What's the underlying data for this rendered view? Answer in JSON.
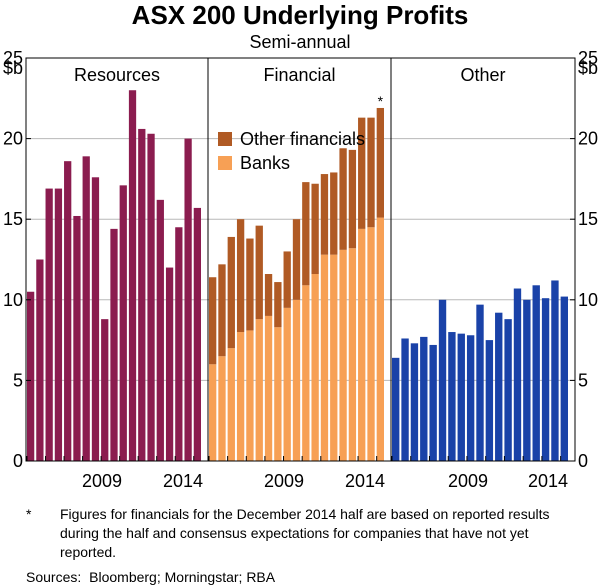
{
  "title": "ASX 200 Underlying Profits",
  "subtitle": "Semi-annual",
  "chart_data": {
    "type": "bar",
    "ylabel": "$b",
    "ylim": [
      0,
      25
    ],
    "yticks": [
      0,
      5,
      10,
      15,
      20,
      25
    ],
    "xtick_labels": [
      "2009",
      "2014"
    ],
    "panels": [
      {
        "title": "Resources",
        "stacked": false,
        "color": "#8b1c4f",
        "values": [
          10.5,
          12.5,
          16.9,
          16.9,
          18.6,
          15.2,
          18.9,
          17.6,
          8.8,
          14.4,
          17.1,
          23.0,
          20.6,
          20.3,
          16.2,
          12.0,
          14.5,
          20.0,
          15.7
        ]
      },
      {
        "title": "Financial",
        "stacked": true,
        "annotation": "*",
        "series": [
          {
            "name": "Banks",
            "color": "#f7a055",
            "values": [
              6.0,
              6.5,
              7.0,
              8.0,
              8.1,
              8.8,
              9.0,
              8.3,
              9.5,
              10.0,
              10.9,
              11.6,
              12.8,
              12.8,
              13.1,
              13.2,
              14.4,
              14.5,
              15.1
            ]
          },
          {
            "name": "Other financials",
            "color": "#b05a24",
            "values": [
              5.4,
              5.7,
              6.9,
              7.0,
              5.7,
              5.8,
              2.6,
              2.8,
              3.5,
              5.0,
              6.4,
              5.6,
              5.0,
              5.1,
              6.3,
              6.1,
              6.9,
              6.8,
              6.8
            ]
          }
        ],
        "legend": [
          "Other financials",
          "Banks"
        ]
      },
      {
        "title": "Other",
        "stacked": false,
        "color": "#1a42a8",
        "values": [
          6.4,
          7.6,
          7.3,
          7.7,
          7.2,
          10.0,
          8.0,
          7.9,
          7.8,
          9.7,
          7.5,
          9.2,
          8.8,
          10.7,
          10.0,
          10.9,
          10.1,
          11.2,
          10.2
        ]
      }
    ]
  },
  "footnote": {
    "marker": "*",
    "text": "Figures for financials for the December 2014 half are based on reported results during the half and consensus expectations for companies that have not yet reported."
  },
  "sources": {
    "label": "Sources:",
    "text": "Bloomberg; Morningstar; RBA"
  }
}
